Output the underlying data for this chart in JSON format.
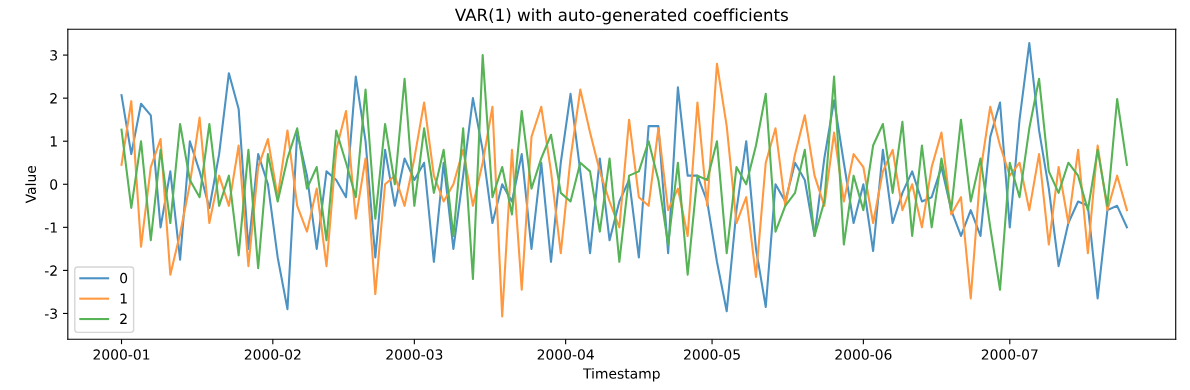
{
  "chart_data": {
    "type": "line",
    "title": "VAR(1) with auto-generated coefficients",
    "xlabel": "Timestamp",
    "ylabel": "Value",
    "x": [
      "2000-01-01",
      "2000-01-03",
      "2000-01-05",
      "2000-01-07",
      "2000-01-09",
      "2000-01-11",
      "2000-01-13",
      "2000-01-15",
      "2000-01-17",
      "2000-01-19",
      "2000-01-21",
      "2000-01-23",
      "2000-01-25",
      "2000-01-27",
      "2000-01-29",
      "2000-01-31",
      "2000-02-02",
      "2000-02-04",
      "2000-02-06",
      "2000-02-08",
      "2000-02-10",
      "2000-02-12",
      "2000-02-14",
      "2000-02-16",
      "2000-02-18",
      "2000-02-20",
      "2000-02-22",
      "2000-02-24",
      "2000-02-26",
      "2000-02-28",
      "2000-03-01",
      "2000-03-03",
      "2000-03-05",
      "2000-03-07",
      "2000-03-09",
      "2000-03-11",
      "2000-03-13",
      "2000-03-15",
      "2000-03-17",
      "2000-03-19",
      "2000-03-21",
      "2000-03-23",
      "2000-03-25",
      "2000-03-27",
      "2000-03-29",
      "2000-03-31",
      "2000-04-02",
      "2000-04-04",
      "2000-04-06",
      "2000-04-08",
      "2000-04-10",
      "2000-04-12",
      "2000-04-14",
      "2000-04-16",
      "2000-04-18",
      "2000-04-20",
      "2000-04-22",
      "2000-04-24",
      "2000-04-26",
      "2000-04-28",
      "2000-04-30",
      "2000-05-02",
      "2000-05-04",
      "2000-05-06",
      "2000-05-08",
      "2000-05-10",
      "2000-05-12",
      "2000-05-14",
      "2000-05-16",
      "2000-05-18",
      "2000-05-20",
      "2000-05-22",
      "2000-05-24",
      "2000-05-26",
      "2000-05-28",
      "2000-05-30",
      "2000-06-01",
      "2000-06-03",
      "2000-06-05",
      "2000-06-07",
      "2000-06-09",
      "2000-06-11",
      "2000-06-13",
      "2000-06-15",
      "2000-06-17",
      "2000-06-19",
      "2000-06-21",
      "2000-06-23",
      "2000-06-25",
      "2000-06-27",
      "2000-06-29",
      "2000-07-01",
      "2000-07-03",
      "2000-07-05",
      "2000-07-07",
      "2000-07-09",
      "2000-07-11",
      "2000-07-13",
      "2000-07-15",
      "2000-07-17",
      "2000-07-19",
      "2000-07-21",
      "2000-07-23",
      "2000-07-25"
    ],
    "series": [
      {
        "name": "0",
        "color": "#4c92c3",
        "values": [
          2.07,
          0.7,
          1.87,
          1.6,
          -1.0,
          0.3,
          -1.75,
          1.0,
          0.3,
          -0.55,
          0.7,
          2.58,
          1.75,
          -1.5,
          0.7,
          0.0,
          -1.7,
          -2.9,
          1.2,
          0.2,
          -1.5,
          0.3,
          0.1,
          -0.3,
          2.5,
          1.0,
          -1.7,
          0.8,
          -0.5,
          0.6,
          0.1,
          0.5,
          -1.8,
          0.5,
          -1.5,
          0.2,
          2.0,
          0.8,
          -0.9,
          0.0,
          -0.4,
          0.7,
          -1.5,
          0.5,
          -1.8,
          0.5,
          2.1,
          0.3,
          -1.6,
          0.6,
          -1.3,
          -0.4,
          0.1,
          -1.7,
          1.35,
          1.35,
          -1.6,
          2.25,
          0.2,
          0.2,
          -0.4,
          -1.8,
          -2.95,
          -0.6,
          1.0,
          -1.5,
          -2.85,
          0.0,
          -0.4,
          0.5,
          0.1,
          -1.2,
          0.6,
          1.95,
          0.5,
          -0.9,
          0.0,
          -1.55,
          0.8,
          -0.9,
          -0.2,
          0.3,
          -0.4,
          -0.3,
          0.4,
          -0.6,
          -1.2,
          -0.6,
          -1.2,
          1.1,
          1.9,
          -1.0,
          1.5,
          3.28,
          1.25,
          -0.1,
          -1.9,
          -0.9,
          -0.4,
          -0.5,
          -2.65,
          -0.6,
          -0.5,
          -1.0
        ]
      },
      {
        "name": "1",
        "color": "#ff983e",
        "values": [
          0.45,
          1.93,
          -1.45,
          0.4,
          1.05,
          -2.1,
          -1.15,
          0.0,
          1.55,
          -0.9,
          0.2,
          -0.5,
          0.9,
          -1.9,
          0.4,
          1.05,
          -0.3,
          1.25,
          -0.5,
          -1.1,
          -0.1,
          -1.9,
          0.8,
          1.7,
          -0.8,
          0.6,
          -2.55,
          0.0,
          0.2,
          -0.5,
          0.6,
          1.9,
          0.2,
          -0.4,
          0.0,
          0.8,
          -0.5,
          0.5,
          1.8,
          -3.07,
          0.8,
          -2.45,
          1.1,
          1.8,
          0.3,
          -1.6,
          0.6,
          2.2,
          1.2,
          0.3,
          -0.4,
          -1.0,
          1.5,
          -0.3,
          -0.5,
          1.3,
          -0.6,
          -0.1,
          -1.2,
          1.9,
          -0.5,
          2.8,
          1.35,
          -0.9,
          -0.3,
          -2.15,
          0.5,
          1.3,
          -0.5,
          0.7,
          1.6,
          0.2,
          -0.5,
          1.2,
          -0.4,
          0.7,
          0.4,
          -0.9,
          0.3,
          0.8,
          -0.6,
          0.0,
          -1.0,
          0.4,
          1.2,
          -0.7,
          -0.3,
          -2.65,
          0.3,
          1.8,
          0.9,
          0.2,
          0.5,
          -0.6,
          0.7,
          -1.4,
          0.4,
          -0.9,
          0.8,
          -1.6,
          0.9,
          -0.6,
          0.2,
          -0.6
        ]
      },
      {
        "name": "2",
        "color": "#56b356",
        "values": [
          1.27,
          -0.55,
          1.0,
          -1.3,
          0.8,
          -0.9,
          1.4,
          0.1,
          -0.3,
          1.4,
          -0.5,
          0.2,
          -1.65,
          0.8,
          -1.95,
          0.7,
          -0.4,
          0.6,
          1.3,
          -0.1,
          0.4,
          -1.3,
          1.25,
          0.5,
          -0.3,
          2.2,
          -0.8,
          1.4,
          0.0,
          2.45,
          -0.5,
          1.3,
          -0.2,
          0.8,
          -1.2,
          1.3,
          -2.2,
          3.0,
          -0.3,
          0.4,
          -0.7,
          1.7,
          -0.1,
          0.6,
          1.15,
          -0.2,
          -0.4,
          0.5,
          0.3,
          -1.1,
          0.6,
          -1.8,
          0.2,
          0.3,
          1.0,
          0.1,
          -1.4,
          0.5,
          -2.1,
          0.2,
          0.1,
          1.0,
          -1.6,
          0.4,
          0.0,
          0.9,
          2.1,
          -1.1,
          -0.5,
          -0.2,
          0.8,
          -1.2,
          -0.4,
          2.5,
          -1.4,
          0.2,
          -0.6,
          0.9,
          1.4,
          -0.2,
          1.45,
          -1.2,
          0.9,
          -1.0,
          0.6,
          -0.6,
          1.5,
          -0.4,
          0.6,
          -1.0,
          -2.45,
          0.5,
          -0.3,
          1.3,
          2.45,
          0.3,
          -0.2,
          0.5,
          0.2,
          -0.6,
          0.8,
          -0.5,
          1.98,
          0.45
        ]
      }
    ],
    "xlim": [
      "1999-12-21",
      "2000-08-04"
    ],
    "xticks": [
      {
        "value": "2000-01-01",
        "label": "2000-01"
      },
      {
        "value": "2000-02-01",
        "label": "2000-02"
      },
      {
        "value": "2000-03-01",
        "label": "2000-03"
      },
      {
        "value": "2000-04-01",
        "label": "2000-04"
      },
      {
        "value": "2000-05-01",
        "label": "2000-05"
      },
      {
        "value": "2000-06-01",
        "label": "2000-06"
      },
      {
        "value": "2000-07-01",
        "label": "2000-07"
      }
    ],
    "ylim": [
      -3.6,
      3.6
    ],
    "yticks": [
      -3,
      -2,
      -1,
      0,
      1,
      2,
      3
    ],
    "grid": false,
    "legend": "bottom left",
    "marker": "none",
    "line_style": "solid"
  }
}
